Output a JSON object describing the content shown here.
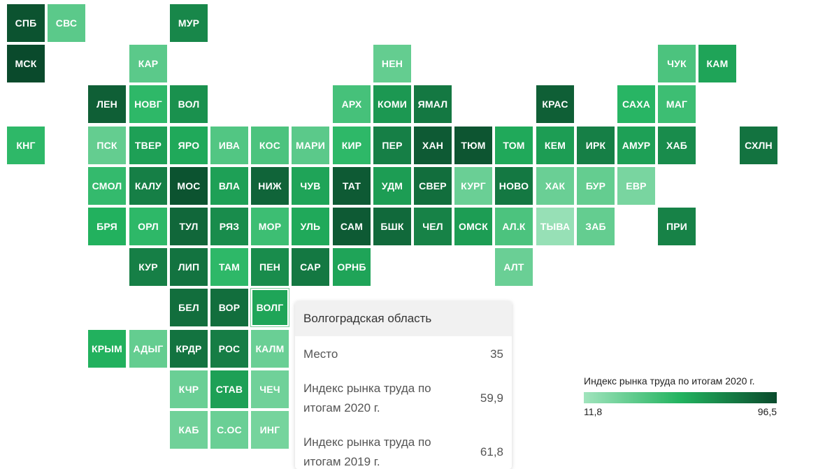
{
  "map": {
    "tiles": [
      {
        "code": "СПБ",
        "value": 93
      },
      {
        "code": "СВС",
        "value": 35
      },
      {
        "code": "МУР",
        "value": 72
      },
      {
        "code": "МСК",
        "value": 96.5
      },
      {
        "code": "КАР",
        "value": 35
      },
      {
        "code": "НЕН",
        "value": 32
      },
      {
        "code": "ЧУК",
        "value": 40
      },
      {
        "code": "КАМ",
        "value": 60
      },
      {
        "code": "ЛЕН",
        "value": 88
      },
      {
        "code": "НОВГ",
        "value": 50
      },
      {
        "code": "ВОЛ",
        "value": 68
      },
      {
        "code": "АРХ",
        "value": 42
      },
      {
        "code": "КОМИ",
        "value": 65
      },
      {
        "code": "ЯМАЛ",
        "value": 78
      },
      {
        "code": "КРАС",
        "value": 88
      },
      {
        "code": "САХА",
        "value": 52
      },
      {
        "code": "МАГ",
        "value": 45
      },
      {
        "code": "КНГ",
        "value": 50
      },
      {
        "code": "ПСК",
        "value": 32
      },
      {
        "code": "ТВЕР",
        "value": 62
      },
      {
        "code": "ЯРО",
        "value": 58
      },
      {
        "code": "ИВА",
        "value": 38
      },
      {
        "code": "КОС",
        "value": 40
      },
      {
        "code": "МАРИ",
        "value": 35
      },
      {
        "code": "КИР",
        "value": 50
      },
      {
        "code": "ПЕР",
        "value": 75
      },
      {
        "code": "ХАН",
        "value": 90
      },
      {
        "code": "ТЮМ",
        "value": 92
      },
      {
        "code": "ТОМ",
        "value": 58
      },
      {
        "code": "КЕМ",
        "value": 63
      },
      {
        "code": "ИРК",
        "value": 75
      },
      {
        "code": "АМУР",
        "value": 62
      },
      {
        "code": "ХАБ",
        "value": 70
      },
      {
        "code": "СХЛН",
        "value": 80
      },
      {
        "code": "СМОЛ",
        "value": 48
      },
      {
        "code": "КАЛУ",
        "value": 75
      },
      {
        "code": "МОС",
        "value": 93
      },
      {
        "code": "ВЛА",
        "value": 62
      },
      {
        "code": "НИЖ",
        "value": 86
      },
      {
        "code": "ЧУВ",
        "value": 60
      },
      {
        "code": "ТАТ",
        "value": 90
      },
      {
        "code": "УДМ",
        "value": 63
      },
      {
        "code": "СВЕР",
        "value": 82
      },
      {
        "code": "КУРГ",
        "value": 30
      },
      {
        "code": "НОВО",
        "value": 78
      },
      {
        "code": "ХАК",
        "value": 30
      },
      {
        "code": "БУР",
        "value": 32
      },
      {
        "code": "ЕВР",
        "value": 25
      },
      {
        "code": "БРЯ",
        "value": 55
      },
      {
        "code": "ОРЛ",
        "value": 50
      },
      {
        "code": "ТУЛ",
        "value": 85
      },
      {
        "code": "РЯЗ",
        "value": 70
      },
      {
        "code": "МОР",
        "value": 45
      },
      {
        "code": "УЛЬ",
        "value": 58
      },
      {
        "code": "САМ",
        "value": 90
      },
      {
        "code": "БШК",
        "value": 84
      },
      {
        "code": "ЧЕЛ",
        "value": 74
      },
      {
        "code": "ОМСК",
        "value": 63
      },
      {
        "code": "АЛ.К",
        "value": 40
      },
      {
        "code": "ТЫВА",
        "value": 15
      },
      {
        "code": "ЗАБ",
        "value": 32
      },
      {
        "code": "ПРИ",
        "value": 74
      },
      {
        "code": "КУР",
        "value": 75
      },
      {
        "code": "ЛИП",
        "value": 80
      },
      {
        "code": "ТАМ",
        "value": 50
      },
      {
        "code": "ПЕН",
        "value": 70
      },
      {
        "code": "САР",
        "value": 78
      },
      {
        "code": "ОРНБ",
        "value": 60
      },
      {
        "code": "АЛТ",
        "value": 30
      },
      {
        "code": "БЕЛ",
        "value": 82
      },
      {
        "code": "ВОР",
        "value": 82
      },
      {
        "code": "ВОЛГ",
        "value": 59.9
      },
      {
        "code": "КРЫМ",
        "value": 55
      },
      {
        "code": "АДЫГ",
        "value": 32
      },
      {
        "code": "КРДР",
        "value": 80
      },
      {
        "code": "РОС",
        "value": 76
      },
      {
        "code": "КАЛМ",
        "value": 30
      },
      {
        "code": "КЧР",
        "value": 30
      },
      {
        "code": "СТАВ",
        "value": 62
      },
      {
        "code": "ЧЕЧ",
        "value": 28
      },
      {
        "code": "КАБ",
        "value": 28
      },
      {
        "code": "С.ОС",
        "value": 30
      },
      {
        "code": "ИНГ",
        "value": 26
      }
    ]
  },
  "tooltip": {
    "title": "Волгоградская область",
    "rows": [
      {
        "label": "Место",
        "value": "35"
      },
      {
        "label": "Индекс рынка труда по итогам 2020 г.",
        "value": "59,9"
      },
      {
        "label": "Индекс рынка труда по итогам 2019 г.",
        "value": "61,8"
      }
    ]
  },
  "legend": {
    "title": "Индекс рынка труда по итогам 2020 г.",
    "min_label": "11,8",
    "max_label": "96,5",
    "min": 11.8,
    "max": 96.5,
    "color_low": "#a1e4bd",
    "color_mid": "#22b35f",
    "color_high": "#0a4a2c"
  }
}
